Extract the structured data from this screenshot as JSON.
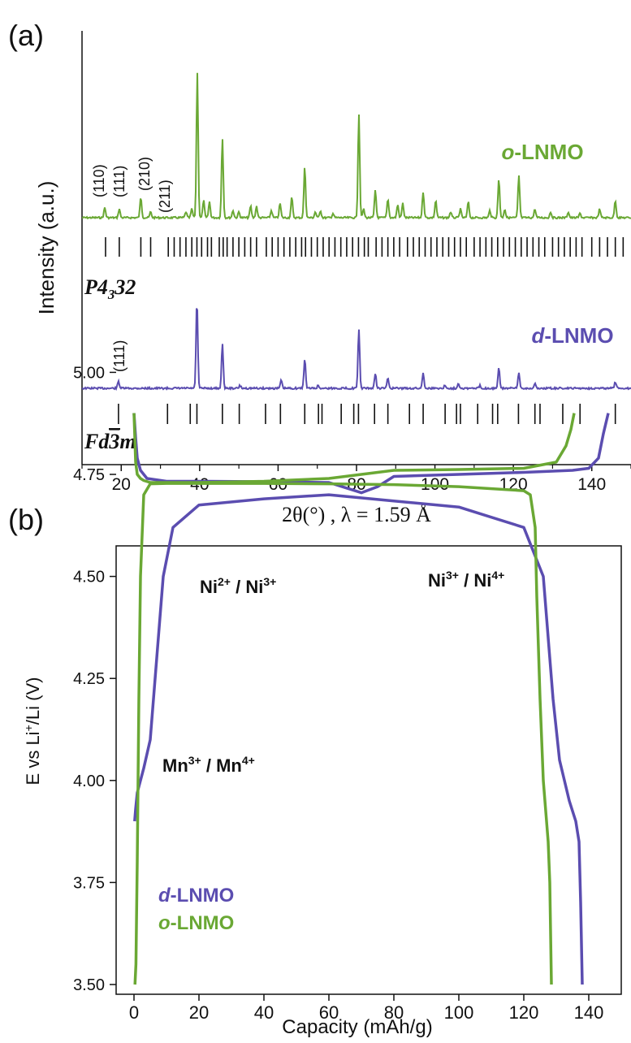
{
  "colors": {
    "green": "#6aa834",
    "purple": "#5b4db0",
    "black": "#111111"
  },
  "panel_a": {
    "letter": "(a)",
    "ylabel": "Intensity (a.u.)",
    "xlabel": "2θ(°) , λ = 1.59 Å",
    "xticks": [
      "20",
      "40",
      "60",
      "80",
      "100",
      "120",
      "140"
    ],
    "o_label_prefix": "o",
    "o_label_suffix": "-LNMO",
    "d_label_prefix": "d",
    "d_label_suffix": "-LNMO",
    "space_group_o": {
      "main": "P4",
      "sub": "3",
      "tail": "32"
    },
    "space_group_d": {
      "main": "Fd",
      "bar": "3",
      "tail": "m"
    },
    "o_peak_labels": [
      "(110)",
      "(111)",
      "(210)",
      "(211)"
    ],
    "d_peak_labels": [
      "(111)"
    ]
  },
  "panel_b": {
    "letter": "(b)",
    "ylabel_pre": "E vs Li",
    "ylabel_sup": "+",
    "ylabel_post": "/Li (V)",
    "xlabel": "Capacity (mAh/g)",
    "yticks": [
      "5.00",
      "4.75",
      "4.50",
      "4.25",
      "4.00",
      "3.75",
      "3.50"
    ],
    "xticks": [
      "0",
      "20",
      "40",
      "60",
      "80",
      "100",
      "120",
      "140"
    ],
    "ann_ni23": {
      "a": "Ni",
      "a_sup": "2+",
      "mid": " / ",
      "b": "Ni",
      "b_sup": "3+"
    },
    "ann_ni34": {
      "a": "Ni",
      "a_sup": "3+",
      "mid": " / ",
      "b": "Ni",
      "b_sup": "4+"
    },
    "ann_mn": {
      "a": "Mn",
      "a_sup": "3+",
      "mid": " / ",
      "b": "Mn",
      "b_sup": "4+"
    },
    "legend_d_prefix": "d",
    "legend_d_suffix": "-LNMO",
    "legend_o_prefix": "o",
    "legend_o_suffix": "-LNMO"
  },
  "chart_data": [
    {
      "type": "line",
      "title": "",
      "xlabel": "2θ(°) , λ = 1.59 Å",
      "ylabel": "Intensity (a.u.)",
      "xlim": [
        10,
        150
      ],
      "grid": false,
      "series": [
        {
          "name": "o-LNMO",
          "color": "#6aa834",
          "peaks": [
            [
              15.8,
              0.07
            ],
            [
              19.5,
              0.06
            ],
            [
              25.0,
              0.14
            ],
            [
              27.5,
              0.04
            ],
            [
              36.5,
              0.04
            ],
            [
              38.0,
              0.06
            ],
            [
              39.4,
              1.0
            ],
            [
              41.0,
              0.12
            ],
            [
              42.5,
              0.11
            ],
            [
              45.8,
              0.55
            ],
            [
              48.5,
              0.05
            ],
            [
              50.0,
              0.04
            ],
            [
              53.0,
              0.08
            ],
            [
              54.5,
              0.08
            ],
            [
              58.3,
              0.05
            ],
            [
              60.5,
              0.1
            ],
            [
              63.5,
              0.14
            ],
            [
              66.8,
              0.35
            ],
            [
              69.5,
              0.04
            ],
            [
              70.8,
              0.05
            ],
            [
              74.0,
              0.03
            ],
            [
              80.6,
              0.72
            ],
            [
              81.8,
              0.06
            ],
            [
              84.8,
              0.19
            ],
            [
              88.0,
              0.13
            ],
            [
              90.5,
              0.09
            ],
            [
              91.8,
              0.1
            ],
            [
              97.0,
              0.18
            ],
            [
              100.2,
              0.12
            ],
            [
              104.0,
              0.04
            ],
            [
              106.5,
              0.06
            ],
            [
              108.5,
              0.11
            ],
            [
              114.0,
              0.05
            ],
            [
              116.3,
              0.27
            ],
            [
              117.8,
              0.06
            ],
            [
              121.4,
              0.29
            ],
            [
              125.5,
              0.06
            ],
            [
              129.5,
              0.04
            ],
            [
              134.0,
              0.04
            ],
            [
              137.0,
              0.03
            ],
            [
              142.0,
              0.06
            ],
            [
              146.0,
              0.12
            ]
          ]
        },
        {
          "name": "d-LNMO",
          "color": "#5b4db0",
          "peaks": [
            [
              19.3,
              0.08
            ],
            [
              39.3,
              1.0
            ],
            [
              45.8,
              0.5
            ],
            [
              50.3,
              0.03
            ],
            [
              60.8,
              0.09
            ],
            [
              66.8,
              0.34
            ],
            [
              70.2,
              0.03
            ],
            [
              80.6,
              0.67
            ],
            [
              84.8,
              0.17
            ],
            [
              88.0,
              0.12
            ],
            [
              97.0,
              0.18
            ],
            [
              102.5,
              0.03
            ],
            [
              106.0,
              0.06
            ],
            [
              111.5,
              0.03
            ],
            [
              116.3,
              0.23
            ],
            [
              121.4,
              0.18
            ],
            [
              125.5,
              0.05
            ],
            [
              146.0,
              0.07
            ]
          ]
        }
      ],
      "reflection_ticks": {
        "P4_332": [
          16,
          19.5,
          25,
          27.5,
          32,
          33.5,
          35,
          36.5,
          38,
          39.3,
          40.5,
          42,
          43,
          45,
          46,
          47,
          48.5,
          50,
          51.5,
          53,
          54.5,
          57,
          58.5,
          60,
          61.5,
          63,
          64.5,
          66,
          67,
          68.5,
          70,
          71.5,
          73,
          74.5,
          76,
          77.5,
          79,
          80.5,
          82,
          83,
          85,
          86.5,
          88,
          89.5,
          91,
          93,
          94.5,
          96,
          97.5,
          99,
          100.5,
          102,
          103.5,
          105,
          106.5,
          108,
          110,
          111.5,
          113,
          114.5,
          116,
          117.5,
          119,
          120.5,
          122,
          123.5,
          125,
          126.5,
          128,
          130,
          131.5,
          133,
          134.5,
          136,
          137.5,
          140,
          142,
          144,
          146,
          148
        ],
        "Fd-3m": [
          19.3,
          31.8,
          37.6,
          39.3,
          45.8,
          50.1,
          56.8,
          60.6,
          66.8,
          70.3,
          71.2,
          76.1,
          79.3,
          80.5,
          84.6,
          88.0,
          93.5,
          97.0,
          102.6,
          105.5,
          106.5,
          110.9,
          114.7,
          116.0,
          121.3,
          125.5,
          126.8,
          132.6,
          137.0,
          146.0
        ]
      }
    },
    {
      "type": "line",
      "title": "",
      "xlabel": "Capacity (mAh/g)",
      "ylabel": "E vs Li+/Li (V)",
      "xlim": [
        -4,
        150
      ],
      "ylim": [
        3.45,
        5.0
      ],
      "grid": false,
      "legend": "bottom-left",
      "series": [
        {
          "name": "d-LNMO",
          "color": "#5b4db0",
          "x": [
            0,
            0.5,
            1,
            2,
            4,
            10,
            20,
            40,
            60,
            70,
            75,
            80,
            100,
            120,
            135,
            140,
            143,
            144.5,
            146
          ],
          "y": [
            4.9,
            4.84,
            4.79,
            4.76,
            4.74,
            4.733,
            4.733,
            4.732,
            4.73,
            4.705,
            4.72,
            4.745,
            4.75,
            4.755,
            4.76,
            4.765,
            4.79,
            4.85,
            4.9
          ],
          "x2": [
            138,
            137.5,
            137,
            136,
            134,
            131,
            129,
            128,
            126,
            120,
            100,
            80,
            60,
            40,
            20,
            12,
            9,
            7,
            5,
            3,
            2,
            1,
            0.5,
            0.2
          ],
          "y2": [
            3.5,
            3.7,
            3.85,
            3.9,
            3.95,
            4.05,
            4.2,
            4.3,
            4.5,
            4.62,
            4.67,
            4.685,
            4.7,
            4.69,
            4.675,
            4.62,
            4.5,
            4.3,
            4.1,
            4.03,
            4.0,
            3.97,
            3.93,
            3.9
          ]
        },
        {
          "name": "o-LNMO",
          "color": "#6aa834",
          "x": [
            0,
            0.5,
            1,
            2,
            3,
            5,
            20,
            40,
            60,
            80,
            100,
            120,
            130,
            133,
            134.5,
            135.5
          ],
          "y": [
            4.9,
            4.78,
            4.75,
            4.74,
            4.735,
            4.73,
            4.73,
            4.733,
            4.74,
            4.76,
            4.762,
            4.765,
            4.78,
            4.82,
            4.86,
            4.9
          ],
          "x2": [
            128.5,
            128.3,
            128,
            127.5,
            127,
            126,
            125,
            124,
            123.5,
            122,
            120,
            100,
            80,
            60,
            40,
            20,
            10,
            5,
            3,
            2,
            1.5,
            1,
            0.6,
            0.3
          ],
          "y2": [
            3.5,
            3.6,
            3.75,
            3.85,
            3.9,
            4.0,
            4.2,
            4.45,
            4.62,
            4.7,
            4.71,
            4.72,
            4.725,
            4.727,
            4.728,
            4.728,
            4.728,
            4.727,
            4.7,
            4.5,
            4.2,
            3.8,
            3.55,
            3.5
          ]
        }
      ]
    }
  ]
}
